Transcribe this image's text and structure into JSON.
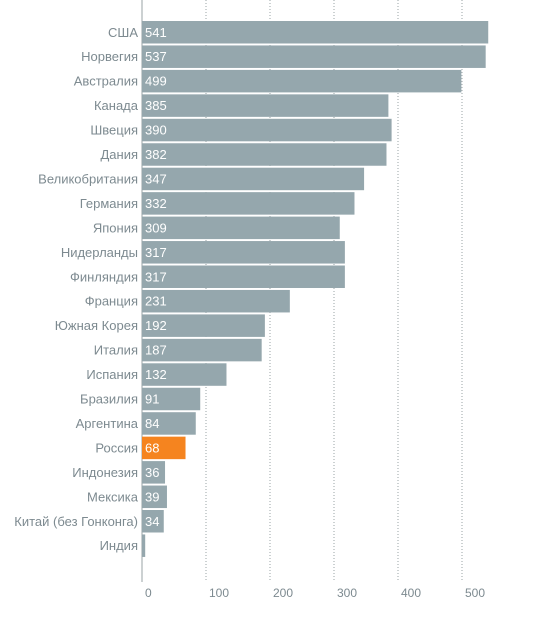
{
  "chart_data": {
    "type": "bar",
    "orientation": "horizontal",
    "categories": [
      "США",
      "Норвегия",
      "Австралия",
      "Канада",
      "Швеция",
      "Дания",
      "Великобритания",
      "Германия",
      "Япония",
      "Нидерланды",
      "Финляндия",
      "Франция",
      "Южная Корея",
      "Италия",
      "Испания",
      "Бразилия",
      "Аргентина",
      "Россия",
      "Индонезия",
      "Мексика",
      "Китай (без Гонконга)",
      "Индия"
    ],
    "values": [
      541,
      537,
      499,
      385,
      390,
      382,
      347,
      332,
      309,
      317,
      317,
      231,
      192,
      187,
      132,
      91,
      84,
      68,
      36,
      39,
      34,
      5
    ],
    "highlight": "Россия",
    "x_ticks": [
      0,
      100,
      200,
      300,
      400,
      500
    ],
    "xlim": [
      0,
      545
    ],
    "grid": "vertical dotted",
    "colors": {
      "bar": "#95a7ad",
      "highlight": "#f5841f",
      "label": "#7d8a90",
      "highlight_label": "#f5841f",
      "value_text": "#ffffff",
      "grid": "#9aa3a6"
    }
  }
}
